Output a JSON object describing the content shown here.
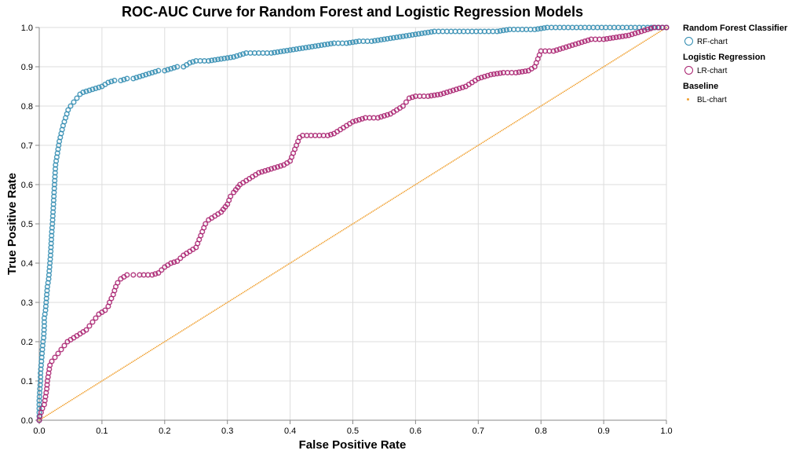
{
  "chart_data": {
    "type": "scatter",
    "title": "ROC-AUC Curve for Random Forest and Logistic Regression Models",
    "xlabel": "False Positive Rate",
    "ylabel": "True Positive Rate",
    "xlim": [
      0,
      1
    ],
    "ylim": [
      0,
      1
    ],
    "x_ticks": [
      "0.0",
      "0.1",
      "0.2",
      "0.3",
      "0.4",
      "0.5",
      "0.6",
      "0.7",
      "0.8",
      "0.9",
      "1.0"
    ],
    "y_ticks": [
      "0.0",
      "0.1",
      "0.2",
      "0.3",
      "0.4",
      "0.5",
      "0.6",
      "0.7",
      "0.8",
      "0.9",
      "1.0"
    ],
    "grid": true,
    "legend_position": "right",
    "series": [
      {
        "name": "RF-chart",
        "legend_title": "Random Forest Classifier",
        "color": "#2f8bb0",
        "marker": "open-circle",
        "points": [
          [
            0.0,
            0.0
          ],
          [
            0.0,
            0.01
          ],
          [
            0.0,
            0.03
          ],
          [
            0.0,
            0.05
          ],
          [
            0.001,
            0.08
          ],
          [
            0.002,
            0.1
          ],
          [
            0.002,
            0.12
          ],
          [
            0.003,
            0.14
          ],
          [
            0.004,
            0.16
          ],
          [
            0.005,
            0.18
          ],
          [
            0.006,
            0.2
          ],
          [
            0.007,
            0.21
          ],
          [
            0.008,
            0.24
          ],
          [
            0.008,
            0.26
          ],
          [
            0.01,
            0.28
          ],
          [
            0.011,
            0.3
          ],
          [
            0.012,
            0.32
          ],
          [
            0.013,
            0.34
          ],
          [
            0.015,
            0.36
          ],
          [
            0.016,
            0.38
          ],
          [
            0.017,
            0.4
          ],
          [
            0.018,
            0.42
          ],
          [
            0.019,
            0.45
          ],
          [
            0.02,
            0.48
          ],
          [
            0.021,
            0.5
          ],
          [
            0.022,
            0.53
          ],
          [
            0.023,
            0.56
          ],
          [
            0.024,
            0.59
          ],
          [
            0.025,
            0.62
          ],
          [
            0.026,
            0.65
          ],
          [
            0.028,
            0.67
          ],
          [
            0.03,
            0.69
          ],
          [
            0.032,
            0.71
          ],
          [
            0.035,
            0.73
          ],
          [
            0.038,
            0.75
          ],
          [
            0.042,
            0.77
          ],
          [
            0.046,
            0.79
          ],
          [
            0.05,
            0.8
          ],
          [
            0.055,
            0.81
          ],
          [
            0.06,
            0.82
          ],
          [
            0.065,
            0.83
          ],
          [
            0.07,
            0.835
          ],
          [
            0.08,
            0.84
          ],
          [
            0.09,
            0.845
          ],
          [
            0.1,
            0.85
          ],
          [
            0.11,
            0.86
          ],
          [
            0.12,
            0.865
          ],
          [
            0.13,
            0.865
          ],
          [
            0.14,
            0.87
          ],
          [
            0.15,
            0.87
          ],
          [
            0.16,
            0.875
          ],
          [
            0.17,
            0.88
          ],
          [
            0.18,
            0.885
          ],
          [
            0.19,
            0.89
          ],
          [
            0.2,
            0.89
          ],
          [
            0.21,
            0.895
          ],
          [
            0.22,
            0.9
          ],
          [
            0.23,
            0.9
          ],
          [
            0.24,
            0.91
          ],
          [
            0.25,
            0.915
          ],
          [
            0.27,
            0.915
          ],
          [
            0.29,
            0.92
          ],
          [
            0.31,
            0.925
          ],
          [
            0.33,
            0.935
          ],
          [
            0.35,
            0.935
          ],
          [
            0.37,
            0.935
          ],
          [
            0.39,
            0.94
          ],
          [
            0.41,
            0.945
          ],
          [
            0.43,
            0.95
          ],
          [
            0.45,
            0.955
          ],
          [
            0.47,
            0.96
          ],
          [
            0.49,
            0.96
          ],
          [
            0.51,
            0.965
          ],
          [
            0.53,
            0.965
          ],
          [
            0.55,
            0.97
          ],
          [
            0.57,
            0.975
          ],
          [
            0.59,
            0.98
          ],
          [
            0.61,
            0.985
          ],
          [
            0.63,
            0.99
          ],
          [
            0.65,
            0.99
          ],
          [
            0.67,
            0.99
          ],
          [
            0.69,
            0.99
          ],
          [
            0.71,
            0.99
          ],
          [
            0.73,
            0.99
          ],
          [
            0.75,
            0.995
          ],
          [
            0.77,
            0.995
          ],
          [
            0.79,
            0.995
          ],
          [
            0.81,
            1.0
          ],
          [
            0.83,
            1.0
          ],
          [
            0.85,
            1.0
          ],
          [
            0.87,
            1.0
          ],
          [
            0.89,
            1.0
          ],
          [
            0.91,
            1.0
          ],
          [
            0.93,
            1.0
          ],
          [
            0.95,
            1.0
          ],
          [
            0.97,
            1.0
          ],
          [
            1.0,
            1.0
          ]
        ]
      },
      {
        "name": "LR-chart",
        "legend_title": "Logistic Regression",
        "color": "#a8206e",
        "marker": "open-circle",
        "points": [
          [
            0.0,
            0.0
          ],
          [
            0.001,
            0.01
          ],
          [
            0.003,
            0.02
          ],
          [
            0.005,
            0.03
          ],
          [
            0.008,
            0.04
          ],
          [
            0.01,
            0.06
          ],
          [
            0.012,
            0.08
          ],
          [
            0.013,
            0.1
          ],
          [
            0.015,
            0.12
          ],
          [
            0.017,
            0.14
          ],
          [
            0.02,
            0.15
          ],
          [
            0.025,
            0.16
          ],
          [
            0.03,
            0.17
          ],
          [
            0.035,
            0.18
          ],
          [
            0.04,
            0.19
          ],
          [
            0.045,
            0.2
          ],
          [
            0.05,
            0.205
          ],
          [
            0.055,
            0.21
          ],
          [
            0.06,
            0.215
          ],
          [
            0.065,
            0.22
          ],
          [
            0.07,
            0.225
          ],
          [
            0.075,
            0.23
          ],
          [
            0.08,
            0.24
          ],
          [
            0.085,
            0.25
          ],
          [
            0.09,
            0.26
          ],
          [
            0.095,
            0.27
          ],
          [
            0.1,
            0.275
          ],
          [
            0.105,
            0.28
          ],
          [
            0.11,
            0.29
          ],
          [
            0.112,
            0.3
          ],
          [
            0.115,
            0.31
          ],
          [
            0.118,
            0.32
          ],
          [
            0.12,
            0.33
          ],
          [
            0.122,
            0.34
          ],
          [
            0.125,
            0.35
          ],
          [
            0.13,
            0.36
          ],
          [
            0.135,
            0.365
          ],
          [
            0.14,
            0.37
          ],
          [
            0.15,
            0.37
          ],
          [
            0.16,
            0.37
          ],
          [
            0.18,
            0.37
          ],
          [
            0.19,
            0.375
          ],
          [
            0.2,
            0.39
          ],
          [
            0.21,
            0.4
          ],
          [
            0.22,
            0.405
          ],
          [
            0.23,
            0.42
          ],
          [
            0.24,
            0.43
          ],
          [
            0.25,
            0.44
          ],
          [
            0.255,
            0.46
          ],
          [
            0.26,
            0.48
          ],
          [
            0.265,
            0.5
          ],
          [
            0.27,
            0.51
          ],
          [
            0.28,
            0.52
          ],
          [
            0.29,
            0.53
          ],
          [
            0.3,
            0.55
          ],
          [
            0.305,
            0.57
          ],
          [
            0.31,
            0.58
          ],
          [
            0.32,
            0.6
          ],
          [
            0.33,
            0.61
          ],
          [
            0.34,
            0.62
          ],
          [
            0.35,
            0.63
          ],
          [
            0.36,
            0.635
          ],
          [
            0.37,
            0.64
          ],
          [
            0.38,
            0.645
          ],
          [
            0.39,
            0.65
          ],
          [
            0.4,
            0.66
          ],
          [
            0.405,
            0.68
          ],
          [
            0.41,
            0.7
          ],
          [
            0.415,
            0.72
          ],
          [
            0.42,
            0.725
          ],
          [
            0.44,
            0.725
          ],
          [
            0.46,
            0.725
          ],
          [
            0.47,
            0.73
          ],
          [
            0.48,
            0.74
          ],
          [
            0.49,
            0.75
          ],
          [
            0.5,
            0.76
          ],
          [
            0.52,
            0.77
          ],
          [
            0.54,
            0.77
          ],
          [
            0.56,
            0.78
          ],
          [
            0.57,
            0.79
          ],
          [
            0.58,
            0.8
          ],
          [
            0.585,
            0.81
          ],
          [
            0.59,
            0.82
          ],
          [
            0.6,
            0.825
          ],
          [
            0.62,
            0.825
          ],
          [
            0.64,
            0.83
          ],
          [
            0.66,
            0.84
          ],
          [
            0.68,
            0.85
          ],
          [
            0.7,
            0.87
          ],
          [
            0.72,
            0.88
          ],
          [
            0.74,
            0.885
          ],
          [
            0.76,
            0.885
          ],
          [
            0.78,
            0.89
          ],
          [
            0.79,
            0.9
          ],
          [
            0.795,
            0.92
          ],
          [
            0.8,
            0.94
          ],
          [
            0.82,
            0.94
          ],
          [
            0.84,
            0.95
          ],
          [
            0.86,
            0.96
          ],
          [
            0.88,
            0.97
          ],
          [
            0.9,
            0.97
          ],
          [
            0.92,
            0.975
          ],
          [
            0.94,
            0.98
          ],
          [
            0.96,
            0.99
          ],
          [
            0.98,
            1.0
          ],
          [
            1.0,
            1.0
          ]
        ]
      },
      {
        "name": "BL-chart",
        "legend_title": "Baseline",
        "color": "#f0a030",
        "marker": "dot",
        "points": [
          [
            0.0,
            0.0
          ],
          [
            1.0,
            1.0
          ]
        ]
      }
    ]
  }
}
